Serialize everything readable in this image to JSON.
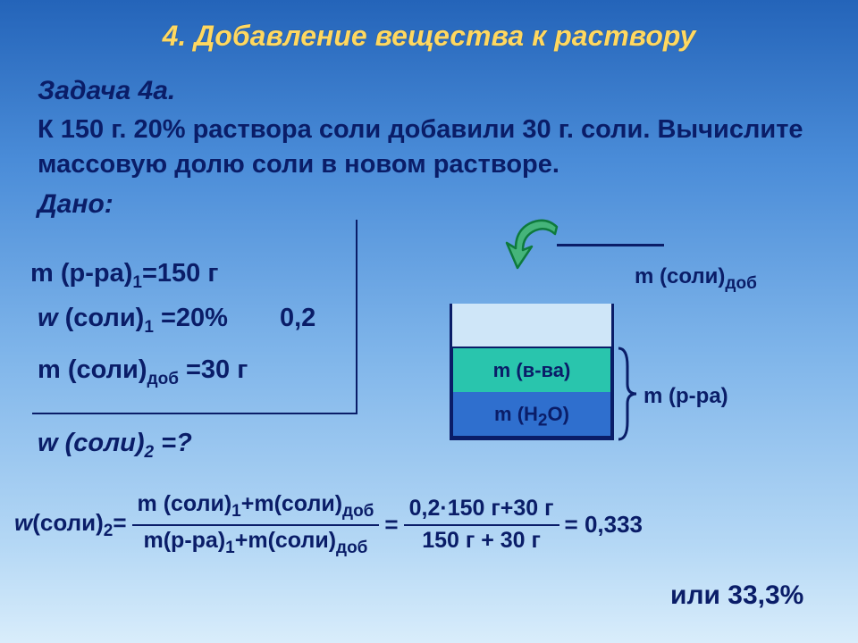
{
  "title": "4. Добавление вещества к раствору",
  "problem_label": "Задача 4а.",
  "problem_body": "К 150 г. 20% раствора соли добавили 30 г. соли. Вычислите массовую долю соли в новом растворе.",
  "given_label": "Дано:",
  "given": {
    "line1_html": "m (р-ра)<span class=\"sub\">1</span>=150 г",
    "line2_html": "<i>w</i> (соли)<span class=\"sub\">1</span> =20%",
    "line2_decimal": "0,2",
    "line3_html": "m (соли)<span class=\"sub\">доб</span> =30 г",
    "find_html": "w (соли)<span class=\"sub\">2</span> =?"
  },
  "diagram": {
    "label_sub": "m (в-ва)",
    "label_h2o_html": "m (H<span class=\"sub\">2</span>O)",
    "label_dob_html": "m (соли)<span class=\"sub\">доб</span>",
    "label_pra": "m (р-ра)",
    "colors": {
      "outline": "#0a1d68",
      "empty": "#cfe6f8",
      "substance": "#29c5ad",
      "water": "#2f6fce",
      "pour_fill": "#45b47a",
      "pour_stroke": "#0e7a3c"
    }
  },
  "formula": {
    "lhs_html": "<i>w</i>(соли)<span class=\"sub\">2</span>=",
    "frac1_top_html": "m (соли)<span class=\"sub\">1</span>+m(соли)<span class=\"sub\">доб</span>",
    "frac1_bot_html": "m(р-ра)<span class=\"sub\">1</span>+m(соли)<span class=\"sub\">доб</span>",
    "equals": "=",
    "frac2_top": "0,2·150 г+30 г",
    "frac2_bot": "150 г + 30 г",
    "result": "= 0,333",
    "percent": "или 33,3%"
  }
}
